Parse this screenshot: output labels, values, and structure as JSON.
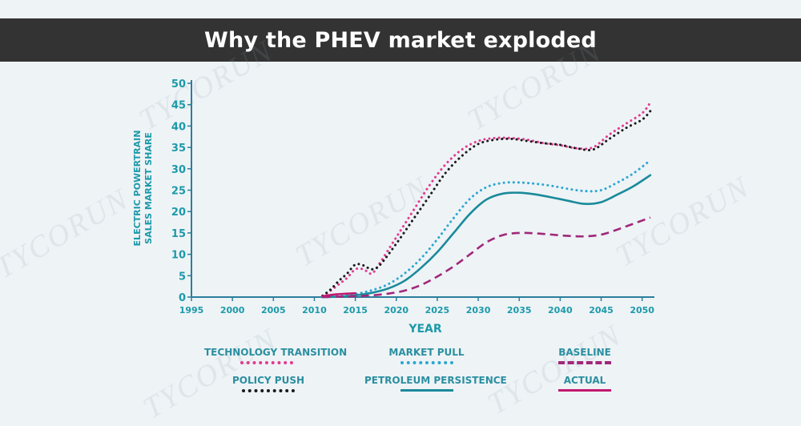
{
  "header": {
    "title": "Why the PHEV market exploded"
  },
  "watermark": {
    "text": "TYCORUN"
  },
  "colors": {
    "background": "#eef3f6",
    "banner": "#333333",
    "axis_text": "#1c9aa9",
    "axis_line": "#2b7f9c",
    "technology_transition": "#e23a8f",
    "policy_push": "#1a1a1a",
    "market_pull": "#2aa7d0",
    "petroleum_persistence": "#1a8a9a",
    "baseline": "#a0287a",
    "actual": "#c2186e"
  },
  "chart_data": {
    "type": "line",
    "title": "",
    "xlabel": "YEAR",
    "ylabel_lines": [
      "ELECTRIC POWERTRAIN",
      "SALES MARKET SHARE"
    ],
    "xlim": [
      1995,
      2051.5
    ],
    "ylim": [
      0,
      50
    ],
    "x_ticks": [
      1995,
      2000,
      2005,
      2010,
      2015,
      2020,
      2025,
      2030,
      2035,
      2040,
      2045,
      2050
    ],
    "y_ticks": [
      0,
      5,
      10,
      15,
      20,
      25,
      30,
      35,
      40,
      45,
      50
    ],
    "grid": false,
    "legend_position": "bottom",
    "series": [
      {
        "name": "TECHNOLOGY TRANSITION",
        "key": "technology_transition",
        "dash": "dot",
        "x": [
          2011,
          2012,
          2013,
          2014,
          2015,
          2016,
          2017,
          2018,
          2020,
          2022,
          2024,
          2026,
          2028,
          2030,
          2032,
          2034,
          2036,
          2038,
          2040,
          2042,
          2044,
          2046,
          2048,
          2050,
          2051
        ],
        "y": [
          0.3,
          1.5,
          3,
          4.5,
          6.5,
          6.5,
          5.5,
          8,
          14,
          20,
          26,
          31,
          34.5,
          36.5,
          37.2,
          37.2,
          36.8,
          36,
          35.5,
          34.8,
          35,
          38,
          40.5,
          43,
          45.5
        ]
      },
      {
        "name": "POLICY PUSH",
        "key": "policy_push",
        "dash": "dot",
        "x": [
          2011,
          2012,
          2013,
          2014,
          2015,
          2016,
          2017,
          2018,
          2020,
          2022,
          2024,
          2026,
          2028,
          2030,
          2032,
          2034,
          2036,
          2038,
          2040,
          2042,
          2044,
          2046,
          2048,
          2050,
          2051
        ],
        "y": [
          0.3,
          1.8,
          3.8,
          5.5,
          7.6,
          7.4,
          6.5,
          7.5,
          12.5,
          18,
          23.5,
          29,
          33,
          35.8,
          36.8,
          37,
          36.5,
          36,
          35.6,
          34.8,
          34.5,
          37,
          39.5,
          41.5,
          43.5
        ]
      },
      {
        "name": "MARKET PULL",
        "key": "market_pull",
        "dash": "dot",
        "x": [
          2011,
          2013,
          2015,
          2017,
          2019,
          2021,
          2023,
          2025,
          2027,
          2029,
          2031,
          2033,
          2035,
          2037,
          2039,
          2041,
          2043,
          2045,
          2047,
          2049,
          2051
        ],
        "y": [
          0,
          0.2,
          0.7,
          1.6,
          3,
          5.5,
          9,
          13.5,
          18.5,
          23,
          25.7,
          26.7,
          26.8,
          26.5,
          26,
          25.3,
          24.8,
          25,
          26.8,
          29,
          32
        ]
      },
      {
        "name": "PETROLEUM PERSISTENCE",
        "key": "petroleum_persistence",
        "dash": "solid",
        "x": [
          2011,
          2013,
          2015,
          2017,
          2019,
          2021,
          2023,
          2025,
          2027,
          2029,
          2031,
          2033,
          2035,
          2037,
          2039,
          2041,
          2043,
          2045,
          2047,
          2049,
          2051
        ],
        "y": [
          0,
          0.1,
          0.4,
          1,
          2,
          3.8,
          6.8,
          10.5,
          15,
          19.5,
          22.8,
          24.2,
          24.4,
          24,
          23.3,
          22.5,
          21.8,
          22.2,
          24,
          26,
          28.5
        ]
      },
      {
        "name": "BASELINE",
        "key": "baseline",
        "dash": "dash",
        "x": [
          2011,
          2013,
          2015,
          2017,
          2019,
          2021,
          2023,
          2025,
          2027,
          2029,
          2031,
          2033,
          2035,
          2037,
          2039,
          2041,
          2043,
          2045,
          2047,
          2049,
          2051
        ],
        "y": [
          0,
          0.1,
          0.2,
          0.4,
          0.8,
          1.5,
          2.8,
          4.8,
          7.2,
          10,
          12.8,
          14.5,
          15,
          14.9,
          14.6,
          14.3,
          14.2,
          14.6,
          15.8,
          17.2,
          18.6
        ]
      },
      {
        "name": "ACTUAL",
        "key": "actual",
        "dash": "solid",
        "x": [
          2011,
          2012,
          2013,
          2014,
          2015
        ],
        "y": [
          0.2,
          0.5,
          0.7,
          0.8,
          0.9
        ]
      }
    ]
  }
}
